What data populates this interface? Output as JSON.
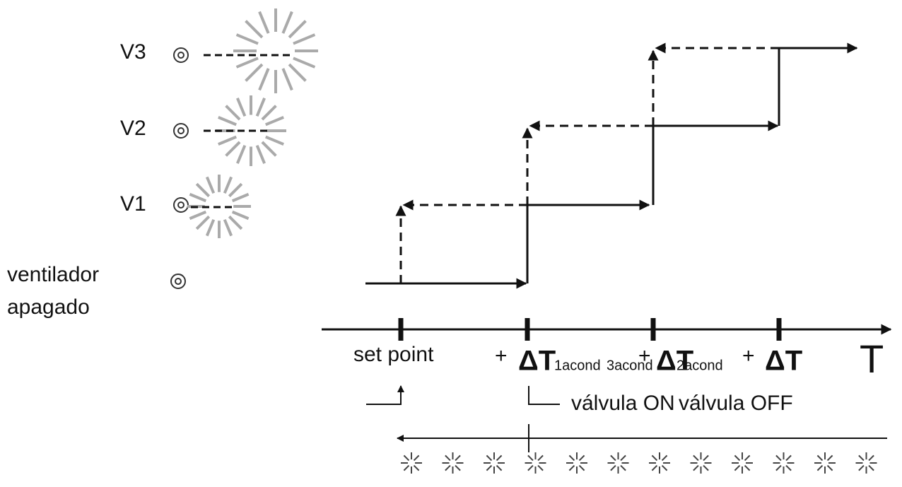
{
  "levels": [
    "V3",
    "V2",
    "V1"
  ],
  "fan_off": [
    "ventilador",
    "apagado"
  ],
  "axis": {
    "label": "T",
    "set_point": "set point",
    "step1": {
      "plus": "+",
      "symbol": "ΔT",
      "sub": "1acond"
    },
    "overlap_sub": "3acond",
    "step2": {
      "plus": "+",
      "symbol": "ΔT",
      "sub": "2acond"
    },
    "step3": {
      "plus": "+",
      "symbol": "ΔT"
    }
  },
  "valve": {
    "on": "válvula ON",
    "off": "válvula OFF"
  }
}
